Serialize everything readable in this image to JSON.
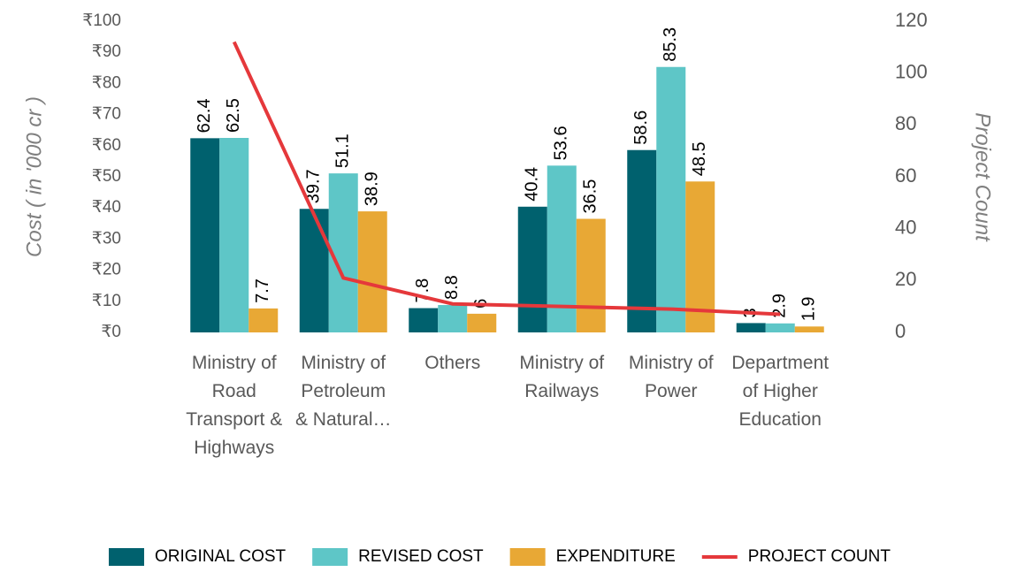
{
  "chart_data": {
    "type": "bar_line",
    "y_label": "Cost ( in '000 cr )",
    "y2_label": "Project Count",
    "categories": [
      "Ministry of Road Transport & Highways",
      "Ministry of Petroleum & Natural…",
      "Others",
      "Ministry of Railways",
      "Ministry of Power",
      "Department of Higher Education"
    ],
    "series": [
      {
        "name": "ORIGINAL COST",
        "color": "#00616e",
        "type": "bar",
        "values": [
          62.4,
          39.7,
          7.8,
          40.4,
          58.6,
          3
        ]
      },
      {
        "name": "REVISED COST",
        "color": "#5ec6c7",
        "type": "bar",
        "values": [
          62.5,
          51.1,
          8.8,
          53.6,
          85.3,
          2.9
        ]
      },
      {
        "name": "EXPENDITURE",
        "color": "#e8a835",
        "type": "bar",
        "values": [
          7.7,
          38.9,
          6,
          36.5,
          48.5,
          1.9
        ]
      },
      {
        "name": "PROJECT COUNT",
        "color": "#e5383b",
        "type": "line",
        "axis": "y2",
        "values": [
          112,
          21,
          11,
          10,
          9,
          7
        ]
      }
    ],
    "ylim": [
      0,
      100
    ],
    "yticks": [
      {
        "value": 0,
        "label": "₹0"
      },
      {
        "value": 10,
        "label": "₹10"
      },
      {
        "value": 20,
        "label": "₹20"
      },
      {
        "value": 30,
        "label": "₹30"
      },
      {
        "value": 40,
        "label": "₹40"
      },
      {
        "value": 50,
        "label": "₹50"
      },
      {
        "value": 60,
        "label": "₹60"
      },
      {
        "value": 70,
        "label": "₹70"
      },
      {
        "value": 80,
        "label": "₹80"
      },
      {
        "value": 90,
        "label": "₹90"
      },
      {
        "value": 100,
        "label": "₹100"
      }
    ],
    "y2lim": [
      0,
      120
    ],
    "y2ticks": [
      0,
      20,
      40,
      60,
      80,
      100,
      120
    ],
    "legend": "bottom"
  }
}
